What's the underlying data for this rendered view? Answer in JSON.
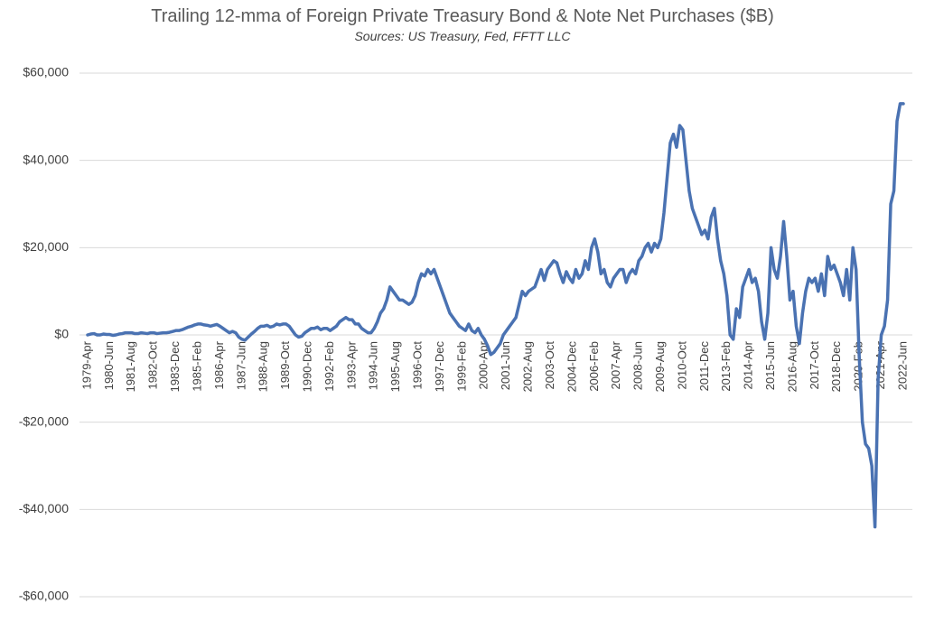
{
  "chart_data": {
    "type": "line",
    "title": "Trailing 12-mma of Foreign Private Treasury Bond & Note Net Purchases ($B)",
    "subtitle": "Sources: US Treasury, Fed, FFTT LLC",
    "color": "#4a72b2",
    "grid": true,
    "ylim": [
      -60000,
      60000
    ],
    "yticks": [
      {
        "value": -60000,
        "label": "-$60,000"
      },
      {
        "value": -40000,
        "label": "-$40,000"
      },
      {
        "value": -20000,
        "label": "-$20,000"
      },
      {
        "value": 0,
        "label": "$0"
      },
      {
        "value": 20000,
        "label": "$20,000"
      },
      {
        "value": 40000,
        "label": "$40,000"
      },
      {
        "value": 60000,
        "label": "$60,000"
      }
    ],
    "categories": [
      "1979-Apr",
      null,
      null,
      null,
      null,
      null,
      null,
      "1980-Jun",
      null,
      null,
      null,
      null,
      null,
      null,
      "1981-Aug",
      null,
      null,
      null,
      null,
      null,
      null,
      "1982-Oct",
      null,
      null,
      null,
      null,
      null,
      null,
      "1983-Dec",
      null,
      null,
      null,
      null,
      null,
      null,
      "1985-Feb",
      null,
      null,
      null,
      null,
      null,
      null,
      "1986-Apr",
      null,
      null,
      null,
      null,
      null,
      null,
      "1987-Jun",
      null,
      null,
      null,
      null,
      null,
      null,
      "1988-Aug",
      null,
      null,
      null,
      null,
      null,
      null,
      "1989-Oct",
      null,
      null,
      null,
      null,
      null,
      null,
      "1990-Dec",
      null,
      null,
      null,
      null,
      null,
      null,
      "1992-Feb",
      null,
      null,
      null,
      null,
      null,
      null,
      "1993-Apr",
      null,
      null,
      null,
      null,
      null,
      null,
      "1994-Jun",
      null,
      null,
      null,
      null,
      null,
      null,
      "1995-Aug",
      null,
      null,
      null,
      null,
      null,
      null,
      "1996-Oct",
      null,
      null,
      null,
      null,
      null,
      null,
      "1997-Dec",
      null,
      null,
      null,
      null,
      null,
      null,
      "1999-Feb",
      null,
      null,
      null,
      null,
      null,
      null,
      "2000-Apr",
      null,
      null,
      null,
      null,
      null,
      null,
      "2001-Jun",
      null,
      null,
      null,
      null,
      null,
      null,
      "2002-Aug",
      null,
      null,
      null,
      null,
      null,
      null,
      "2003-Oct",
      null,
      null,
      null,
      null,
      null,
      null,
      "2004-Dec",
      null,
      null,
      null,
      null,
      null,
      null,
      "2006-Feb",
      null,
      null,
      null,
      null,
      null,
      null,
      "2007-Apr",
      null,
      null,
      null,
      null,
      null,
      null,
      "2008-Jun",
      null,
      null,
      null,
      null,
      null,
      null,
      "2009-Aug",
      null,
      null,
      null,
      null,
      null,
      null,
      "2010-Oct",
      null,
      null,
      null,
      null,
      null,
      null,
      "2011-Dec",
      null,
      null,
      null,
      null,
      null,
      null,
      "2013-Feb",
      null,
      null,
      null,
      null,
      null,
      null,
      "2014-Apr",
      null,
      null,
      null,
      null,
      null,
      null,
      "2015-Jun",
      null,
      null,
      null,
      null,
      null,
      null,
      "2016-Aug",
      null,
      null,
      null,
      null,
      null,
      null,
      "2017-Oct",
      null,
      null,
      null,
      null,
      null,
      null,
      "2018-Dec",
      null,
      null,
      null,
      null,
      null,
      null,
      "2020-Feb",
      null,
      null,
      null,
      null,
      null,
      null,
      "2021-Apr",
      null,
      null,
      null,
      null,
      null,
      null,
      "2022-Jun"
    ],
    "values": [
      0,
      200,
      300,
      0,
      0,
      200,
      100,
      100,
      -100,
      0,
      200,
      300,
      500,
      500,
      500,
      300,
      300,
      500,
      400,
      300,
      500,
      500,
      300,
      400,
      500,
      500,
      600,
      800,
      1000,
      1000,
      1200,
      1500,
      1800,
      2000,
      2300,
      2500,
      2500,
      2300,
      2200,
      2000,
      2200,
      2400,
      2000,
      1500,
      1000,
      500,
      800,
      500,
      -500,
      -1000,
      -1200,
      -500,
      200,
      800,
      1500,
      2000,
      2000,
      2200,
      1800,
      2000,
      2500,
      2300,
      2500,
      2500,
      2000,
      1000,
      0,
      -500,
      -300,
      500,
      1000,
      1500,
      1500,
      1800,
      1200,
      1500,
      1500,
      1000,
      1500,
      2000,
      3000,
      3500,
      4000,
      3500,
      3500,
      2500,
      2500,
      1500,
      1000,
      500,
      500,
      1500,
      3000,
      5000,
      6000,
      8000,
      11000,
      10000,
      9000,
      8000,
      8000,
      7500,
      7000,
      7500,
      9000,
      12000,
      14000,
      13500,
      15000,
      14000,
      15000,
      13000,
      11000,
      9000,
      7000,
      5000,
      4000,
      3000,
      2000,
      1500,
      1000,
      2500,
      1000,
      500,
      1500,
      0,
      -1000,
      -2500,
      -4500,
      -4000,
      -3000,
      -2000,
      0,
      1000,
      2000,
      3000,
      4000,
      7000,
      10000,
      9000,
      10000,
      10500,
      11000,
      13000,
      15000,
      12500,
      15000,
      16000,
      17000,
      16500,
      14000,
      12000,
      14500,
      13000,
      12000,
      15000,
      13000,
      14000,
      17000,
      15000,
      20000,
      22000,
      19000,
      14000,
      15000,
      12000,
      11000,
      13000,
      14000,
      15000,
      15000,
      12000,
      14000,
      15000,
      14000,
      17000,
      18000,
      20000,
      21000,
      19000,
      21000,
      20000,
      22000,
      28000,
      36000,
      44000,
      46000,
      43000,
      48000,
      47000,
      40000,
      33000,
      29000,
      27000,
      25000,
      23000,
      24000,
      22000,
      27000,
      29000,
      22000,
      17000,
      14000,
      9000,
      0,
      -1000,
      6000,
      4000,
      11000,
      13000,
      15000,
      12000,
      13000,
      10000,
      3000,
      -1000,
      5000,
      20000,
      15000,
      13000,
      18000,
      26000,
      18000,
      8000,
      10000,
      2000,
      -2000,
      5000,
      10000,
      13000,
      12000,
      13000,
      10000,
      14000,
      9000,
      18000,
      15000,
      16000,
      14000,
      12000,
      9000,
      15000,
      8000,
      20000,
      15000,
      -5000,
      -20000,
      -25000,
      -26000,
      -30000,
      -44000,
      -10000,
      0,
      2000,
      8000,
      30000,
      33000,
      49000,
      53000,
      53000
    ]
  }
}
